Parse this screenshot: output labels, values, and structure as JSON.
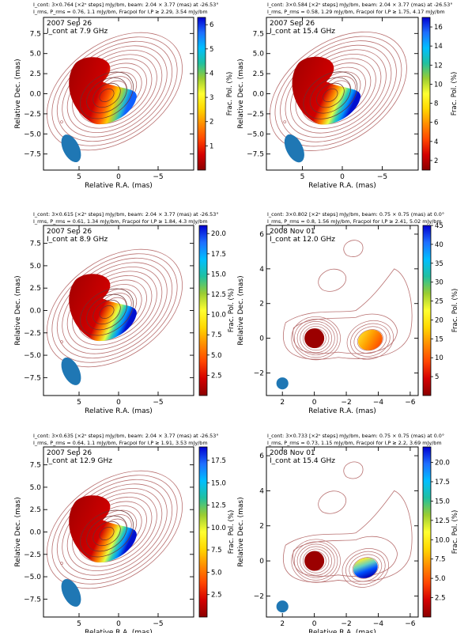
{
  "panels": [
    {
      "header1": "I_cont: 3×0.764 [×2ⁿ steps] mJy/bm, beam: 2.04 × 3.77 (mas) at -26.53°",
      "header2": "I_rms, P_rms = 0.76, 1.1  mJy/bm, Fracpol for I,P ≥ 2.29, 3.54 mJy/bm",
      "epoch": "2007 Sep 26",
      "freq_label": "I_cont at 7.9 GHz",
      "colorbar_label": "Frac. Pol. (%)"
    },
    {
      "header1": "I_cont: 3×0.584 [×2ⁿ steps] mJy/bm, beam: 2.04 × 3.77 (mas) at -26.53°",
      "header2": "I_rms, P_rms = 0.58, 1.29  mJy/bm, Fracpol for I,P ≥ 1.75, 4.17 mJy/bm",
      "epoch": "2007 Sep 26",
      "freq_label": "I_cont at 15.4 GHz",
      "colorbar_label": "Frac. Pol. (%)"
    },
    {
      "header1": "I_cont: 3×0.615 [×2ⁿ steps] mJy/bm, beam: 2.04 × 3.77 (mas) at -26.53°",
      "header2": "I_rms, P_rms = 0.61, 1.34  mJy/bm, Fracpol for I,P ≥ 1.84, 4.3 mJy/bm",
      "epoch": "2007 Sep 26",
      "freq_label": "I_cont at 8.9 GHz",
      "colorbar_label": "Frac. Pol. (%)"
    },
    {
      "header1": "I_cont: 3×0.802 [×2ⁿ steps] mJy/bm, beam: 0.75 × 0.75 (mas) at 0.0°",
      "header2": "I_rms, P_rms = 0.8, 1.56  mJy/bm, Fracpol for I,P ≥ 2.41, 5.02 mJy/bm",
      "epoch": "2008 Nov 01",
      "freq_label": "I_cont at 12.0 GHz",
      "colorbar_label": "Frac. Pol. (%)"
    },
    {
      "header1": "I_cont: 3×0.635 [×2ⁿ steps] mJy/bm, beam: 2.04 × 3.77 (mas) at -26.53°",
      "header2": "I_rms, P_rms = 0.64, 1.1  mJy/bm, Fracpol for I,P ≥ 1.91, 3.53 mJy/bm",
      "epoch": "2007 Sep 26",
      "freq_label": "I_cont at 12.9 GHz",
      "colorbar_label": "Frac. Pol. (%)"
    },
    {
      "header1": "I_cont: 3×0.733 [×2ⁿ steps] mJy/bm, beam: 0.75 × 0.75 (mas) at 0.0°",
      "header2": "I_rms, P_rms = 0.73, 1.15  mJy/bm, Fracpol for I,P ≥ 2.2, 3.69 mJy/bm",
      "epoch": "2008 Nov 01",
      "freq_label": "I_cont at 15.4 GHz",
      "colorbar_label": "Frac. Pol. (%)"
    }
  ],
  "colors": {
    "contour": "#b87070",
    "beam": "#1f77b4",
    "colormap": [
      "#8b0000",
      "#d40000",
      "#ff4500",
      "#ff8c00",
      "#ffd700",
      "#ffff30",
      "#9acd32",
      "#20c0a0",
      "#00bfff",
      "#1e6fff",
      "#0000d0"
    ]
  },
  "chart_data": [
    {
      "type": "heatmap",
      "title": "2007 Sep 26",
      "subtitle": "I_cont at 7.9 GHz",
      "xlabel": "Relative R.A. (mas)",
      "ylabel": "Relative Dec. (mas)",
      "xlim": [
        9.5,
        -9.5
      ],
      "ylim": [
        -9.5,
        9.5
      ],
      "xticks": [
        5,
        0,
        -5
      ],
      "xtick_labels": [
        "5",
        "0",
        "−5"
      ],
      "yticks": [
        7.5,
        5.0,
        2.5,
        0.0,
        -2.5,
        -5.0,
        -7.5
      ],
      "ytick_labels": [
        "7.5",
        "5.0",
        "2.5",
        "0.0",
        "−2.5",
        "−5.0",
        "−7.5"
      ],
      "colorbar": {
        "label": "Frac. Pol. (%)",
        "min": 0,
        "max": 6.3,
        "ticks": [
          1,
          2,
          3,
          4,
          5,
          6
        ],
        "tick_labels": [
          "1",
          "2",
          "3",
          "4",
          "5",
          "6"
        ]
      },
      "beam": {
        "major_mas": 3.77,
        "minor_mas": 2.04,
        "pa_deg": -26.53
      },
      "core_mas": [
        0,
        0
      ]
    },
    {
      "type": "heatmap",
      "title": "2007 Sep 26",
      "subtitle": "I_cont at 15.4 GHz",
      "xlabel": "Relative R.A. (mas)",
      "ylabel": "Relative Dec. (mas)",
      "xlim": [
        9.5,
        -9.5
      ],
      "ylim": [
        -9.5,
        9.5
      ],
      "xticks": [
        5,
        0,
        -5
      ],
      "xtick_labels": [
        "5",
        "0",
        "−5"
      ],
      "yticks": [
        7.5,
        5.0,
        2.5,
        0.0,
        -2.5,
        -5.0,
        -7.5
      ],
      "ytick_labels": [
        "7.5",
        "5.0",
        "2.5",
        "0.0",
        "−2.5",
        "−5.0",
        "−7.5"
      ],
      "colorbar": {
        "label": "Frac. Pol. (%)",
        "min": 1,
        "max": 17,
        "ticks": [
          2,
          4,
          6,
          8,
          10,
          12,
          14,
          16
        ],
        "tick_labels": [
          "2",
          "4",
          "6",
          "8",
          "10",
          "12",
          "14",
          "16"
        ]
      },
      "beam": {
        "major_mas": 3.77,
        "minor_mas": 2.04,
        "pa_deg": -26.53
      },
      "core_mas": [
        0,
        0
      ]
    },
    {
      "type": "heatmap",
      "title": "2007 Sep 26",
      "subtitle": "I_cont at 8.9 GHz",
      "xlabel": "Relative R.A. (mas)",
      "ylabel": "Relative Dec. (mas)",
      "xlim": [
        9.5,
        -9.5
      ],
      "ylim": [
        -9.5,
        9.5
      ],
      "xticks": [
        5,
        0,
        -5
      ],
      "xtick_labels": [
        "5",
        "0",
        "−5"
      ],
      "yticks": [
        7.5,
        5.0,
        2.5,
        0.0,
        -2.5,
        -5.0,
        -7.5
      ],
      "ytick_labels": [
        "7.5",
        "5.0",
        "2.5",
        "0.0",
        "−2.5",
        "−5.0",
        "−7.5"
      ],
      "colorbar": {
        "label": "Frac. Pol. (%)",
        "min": 0,
        "max": 21,
        "ticks": [
          2.5,
          5.0,
          7.5,
          10.0,
          12.5,
          15.0,
          17.5,
          20.0
        ],
        "tick_labels": [
          "2.5",
          "5.0",
          "7.5",
          "10.0",
          "12.5",
          "15.0",
          "17.5",
          "20.0"
        ]
      },
      "beam": {
        "major_mas": 3.77,
        "minor_mas": 2.04,
        "pa_deg": -26.53
      },
      "core_mas": [
        0,
        0
      ]
    },
    {
      "type": "heatmap",
      "title": "2008 Nov 01",
      "subtitle": "I_cont at 12.0 GHz",
      "xlabel": "Relative R.A. (mas)",
      "ylabel": "Relative Dec. (mas)",
      "xlim": [
        3,
        -6.5
      ],
      "ylim": [
        -3.3,
        6.5
      ],
      "xticks": [
        2,
        0,
        -2,
        -4,
        -6
      ],
      "xtick_labels": [
        "2",
        "0",
        "−2",
        "−4",
        "−6"
      ],
      "yticks": [
        6,
        4,
        2,
        0,
        -2
      ],
      "ytick_labels": [
        "6",
        "4",
        "2",
        "0",
        "−2"
      ],
      "colorbar": {
        "label": "Frac. Pol. (%)",
        "min": 0,
        "max": 45,
        "ticks": [
          5,
          10,
          15,
          20,
          25,
          30,
          35,
          40,
          45
        ],
        "tick_labels": [
          "5",
          "10",
          "15",
          "20",
          "25",
          "30",
          "35",
          "40",
          "45"
        ]
      },
      "beam": {
        "major_mas": 0.75,
        "minor_mas": 0.75,
        "pa_deg": 0.0
      },
      "core_mas": [
        0,
        0
      ],
      "knot_mas": [
        -3.5,
        -0.1
      ]
    },
    {
      "type": "heatmap",
      "title": "2007 Sep 26",
      "subtitle": "I_cont at 12.9 GHz",
      "xlabel": "Relative R.A. (mas)",
      "ylabel": "Relative Dec. (mas)",
      "xlim": [
        9.5,
        -9.5
      ],
      "ylim": [
        -9.5,
        9.5
      ],
      "xticks": [
        5,
        0,
        -5
      ],
      "xtick_labels": [
        "5",
        "0",
        "−5"
      ],
      "yticks": [
        7.5,
        5.0,
        2.5,
        0.0,
        -2.5,
        -5.0,
        -7.5
      ],
      "ytick_labels": [
        "7.5",
        "5.0",
        "2.5",
        "0.0",
        "−2.5",
        "−5.0",
        "−7.5"
      ],
      "colorbar": {
        "label": "Frac. Pol. (%)",
        "min": 0,
        "max": 19,
        "ticks": [
          2.5,
          5.0,
          7.5,
          10.0,
          12.5,
          15.0,
          17.5
        ],
        "tick_labels": [
          "2.5",
          "5.0",
          "7.5",
          "10.0",
          "12.5",
          "15.0",
          "17.5"
        ]
      },
      "beam": {
        "major_mas": 3.77,
        "minor_mas": 2.04,
        "pa_deg": -26.53
      },
      "core_mas": [
        0,
        0
      ]
    },
    {
      "type": "heatmap",
      "title": "2008 Nov 01",
      "subtitle": "I_cont at 15.4 GHz",
      "xlabel": "Relative R.A. (mas)",
      "ylabel": "Relative Dec. (mas)",
      "xlim": [
        3,
        -6.5
      ],
      "ylim": [
        -3.2,
        6.5
      ],
      "xticks": [
        2,
        0,
        -2,
        -4,
        -6
      ],
      "xtick_labels": [
        "2",
        "0",
        "−2",
        "−4",
        "−6"
      ],
      "yticks": [
        6,
        4,
        2,
        0,
        -2
      ],
      "ytick_labels": [
        "6",
        "4",
        "2",
        "0",
        "−2"
      ],
      "colorbar": {
        "label": "Frac. Pol. (%)",
        "min": 0,
        "max": 22,
        "ticks": [
          2.5,
          5.0,
          7.5,
          10.0,
          12.5,
          15.0,
          17.5,
          20.0
        ],
        "tick_labels": [
          "2.5",
          "5.0",
          "7.5",
          "10.0",
          "12.5",
          "15.0",
          "17.5",
          "20.0"
        ]
      },
      "beam": {
        "major_mas": 0.75,
        "minor_mas": 0.75,
        "pa_deg": 0.0
      },
      "core_mas": [
        0,
        0
      ],
      "knot_mas": [
        -3.2,
        -0.4
      ]
    }
  ]
}
